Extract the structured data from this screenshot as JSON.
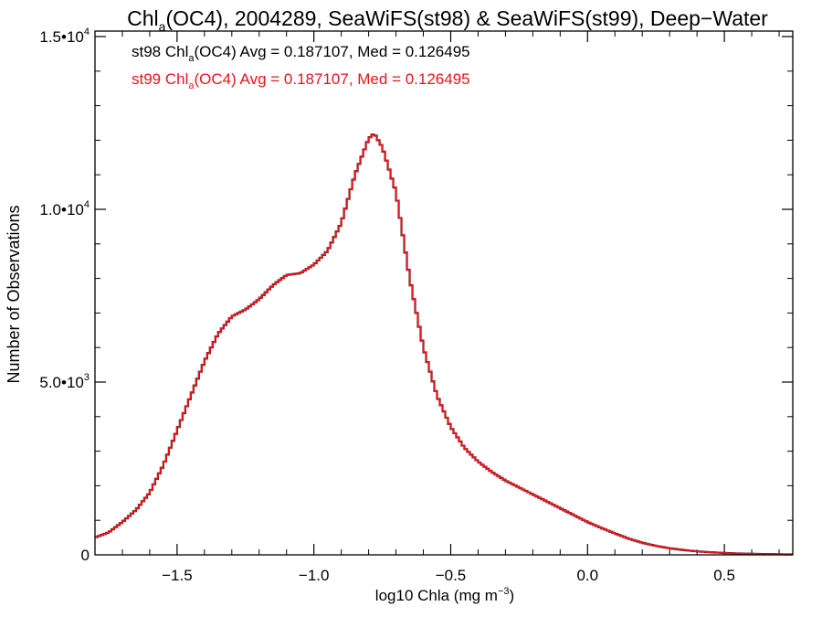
{
  "chart_data": {
    "type": "line",
    "title": {
      "prefix": "Chl",
      "sub": "a",
      "rest": "(OC4), 2004289, SeaWiFS(st98) & SeaWiFS(st99), Deep−Water"
    },
    "xlabel": {
      "main": "log10 Chla (mg m",
      "sup": "−3",
      "close": ")"
    },
    "ylabel": "Number of Observations",
    "xlim": [
      -1.8,
      0.75
    ],
    "ylim": [
      0,
      15000
    ],
    "x_ticks": [
      {
        "value": -1.5,
        "label": "−1.5"
      },
      {
        "value": -1.0,
        "label": "−1.0"
      },
      {
        "value": -0.5,
        "label": "−0.5"
      },
      {
        "value": 0.0,
        "label": "0.0"
      },
      {
        "value": 0.5,
        "label": "0.5"
      }
    ],
    "y_ticks": [
      {
        "value": 0,
        "mantissa": "0",
        "exp": ""
      },
      {
        "value": 5000,
        "mantissa": "5.0•10",
        "exp": "3"
      },
      {
        "value": 10000,
        "mantissa": "1.0•10",
        "exp": "4"
      },
      {
        "value": 15000,
        "mantissa": "1.5•10",
        "exp": "4"
      }
    ],
    "annotations": [
      {
        "series": "st98",
        "pre": "st98 Chl",
        "sub": "a",
        "post": "(OC4) Avg = 0.187107, Med = 0.126495",
        "color": "#000000"
      },
      {
        "series": "st99",
        "pre": "st99 Chl",
        "sub": "a",
        "post": "(OC4) Avg = 0.187107, Med = 0.126495",
        "color": "#e8141c"
      }
    ],
    "series": [
      {
        "name": "st98",
        "color": "#000000",
        "x": [
          -1.8,
          -1.75,
          -1.7,
          -1.65,
          -1.6,
          -1.55,
          -1.5,
          -1.45,
          -1.4,
          -1.35,
          -1.3,
          -1.25,
          -1.2,
          -1.15,
          -1.1,
          -1.05,
          -1.0,
          -0.95,
          -0.9,
          -0.85,
          -0.8,
          -0.78,
          -0.75,
          -0.7,
          -0.65,
          -0.6,
          -0.55,
          -0.5,
          -0.45,
          -0.4,
          -0.35,
          -0.3,
          -0.25,
          -0.2,
          -0.15,
          -0.1,
          -0.05,
          0.0,
          0.05,
          0.1,
          0.15,
          0.2,
          0.25,
          0.3,
          0.35,
          0.4,
          0.45,
          0.5,
          0.55,
          0.6,
          0.65,
          0.7,
          0.75
        ],
        "y": [
          500,
          650,
          950,
          1300,
          1800,
          2600,
          3600,
          4600,
          5600,
          6400,
          6900,
          7100,
          7400,
          7800,
          8100,
          8150,
          8400,
          8800,
          9600,
          11000,
          12050,
          12200,
          11800,
          10500,
          8000,
          6000,
          4600,
          3700,
          3100,
          2700,
          2400,
          2150,
          1950,
          1750,
          1550,
          1350,
          1150,
          950,
          780,
          620,
          470,
          350,
          260,
          190,
          140,
          100,
          75,
          55,
          40,
          30,
          22,
          16,
          12
        ]
      },
      {
        "name": "st99",
        "color": "#e8141c",
        "x": [
          -1.8,
          -1.75,
          -1.7,
          -1.65,
          -1.6,
          -1.55,
          -1.5,
          -1.45,
          -1.4,
          -1.35,
          -1.3,
          -1.25,
          -1.2,
          -1.15,
          -1.1,
          -1.05,
          -1.0,
          -0.95,
          -0.9,
          -0.85,
          -0.8,
          -0.78,
          -0.75,
          -0.7,
          -0.65,
          -0.6,
          -0.55,
          -0.5,
          -0.45,
          -0.4,
          -0.35,
          -0.3,
          -0.25,
          -0.2,
          -0.15,
          -0.1,
          -0.05,
          0.0,
          0.05,
          0.1,
          0.15,
          0.2,
          0.25,
          0.3,
          0.35,
          0.4,
          0.45,
          0.5,
          0.55,
          0.6,
          0.65,
          0.7,
          0.75
        ],
        "y": [
          500,
          650,
          950,
          1300,
          1800,
          2600,
          3600,
          4600,
          5600,
          6400,
          6900,
          7100,
          7400,
          7800,
          8100,
          8150,
          8400,
          8800,
          9600,
          11000,
          12050,
          12200,
          11800,
          10500,
          8000,
          6000,
          4600,
          3700,
          3100,
          2700,
          2400,
          2150,
          1950,
          1750,
          1550,
          1350,
          1150,
          950,
          780,
          620,
          470,
          350,
          260,
          190,
          140,
          100,
          75,
          55,
          40,
          30,
          22,
          16,
          12
        ]
      }
    ]
  }
}
